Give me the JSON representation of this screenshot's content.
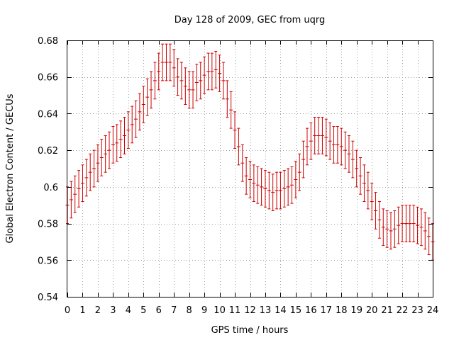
{
  "chart_data": {
    "type": "line",
    "title": "Day 128 of 2009, GEC from uqrg",
    "xlabel": "GPS time / hours",
    "ylabel": "Global Electron Content / GECUs",
    "xlim": [
      0,
      24
    ],
    "ylim": [
      0.54,
      0.68
    ],
    "xticks": [
      "0",
      "1",
      "2",
      "3",
      "4",
      "5",
      "6",
      "7",
      "8",
      "9",
      "10",
      "11",
      "12",
      "13",
      "14",
      "15",
      "16",
      "17",
      "18",
      "19",
      "20",
      "21",
      "22",
      "23",
      "24"
    ],
    "yticks": [
      "0.54",
      "0.56",
      "0.58",
      "0.6",
      "0.62",
      "0.64",
      "0.66",
      "0.68"
    ],
    "grid": true,
    "error": 0.01,
    "color": "#cc0000",
    "series": [
      {
        "name": "GEC",
        "x": [
          0,
          0.25,
          0.5,
          0.75,
          1,
          1.25,
          1.5,
          1.75,
          2,
          2.25,
          2.5,
          2.75,
          3,
          3.25,
          3.5,
          3.75,
          4,
          4.25,
          4.5,
          4.75,
          5,
          5.25,
          5.5,
          5.75,
          6,
          6.25,
          6.5,
          6.75,
          7,
          7.25,
          7.5,
          7.75,
          8,
          8.25,
          8.5,
          8.75,
          9,
          9.25,
          9.5,
          9.75,
          10,
          10.25,
          10.5,
          10.75,
          11,
          11.25,
          11.5,
          11.75,
          12,
          12.25,
          12.5,
          12.75,
          13,
          13.25,
          13.5,
          13.75,
          14,
          14.25,
          14.5,
          14.75,
          15,
          15.25,
          15.5,
          15.75,
          16,
          16.25,
          16.5,
          16.75,
          17,
          17.25,
          17.5,
          17.75,
          18,
          18.25,
          18.5,
          18.75,
          19,
          19.25,
          19.5,
          19.75,
          20,
          20.25,
          20.5,
          20.75,
          21,
          21.25,
          21.5,
          21.75,
          22,
          22.25,
          22.5,
          22.75,
          23,
          23.25,
          23.5,
          23.75,
          24
        ],
        "values": [
          0.59,
          0.593,
          0.596,
          0.599,
          0.602,
          0.605,
          0.608,
          0.61,
          0.613,
          0.616,
          0.618,
          0.62,
          0.623,
          0.624,
          0.626,
          0.628,
          0.631,
          0.634,
          0.637,
          0.641,
          0.645,
          0.649,
          0.653,
          0.658,
          0.663,
          0.668,
          0.668,
          0.668,
          0.665,
          0.66,
          0.658,
          0.655,
          0.653,
          0.653,
          0.657,
          0.658,
          0.661,
          0.663,
          0.663,
          0.664,
          0.662,
          0.658,
          0.648,
          0.642,
          0.631,
          0.622,
          0.613,
          0.606,
          0.604,
          0.602,
          0.601,
          0.6,
          0.599,
          0.598,
          0.597,
          0.598,
          0.598,
          0.599,
          0.6,
          0.601,
          0.604,
          0.608,
          0.615,
          0.622,
          0.625,
          0.628,
          0.628,
          0.628,
          0.627,
          0.625,
          0.623,
          0.623,
          0.622,
          0.62,
          0.618,
          0.615,
          0.61,
          0.606,
          0.602,
          0.598,
          0.592,
          0.587,
          0.582,
          0.578,
          0.577,
          0.576,
          0.577,
          0.579,
          0.58,
          0.58,
          0.58,
          0.58,
          0.579,
          0.578,
          0.576,
          0.573,
          0.57
        ]
      }
    ]
  }
}
